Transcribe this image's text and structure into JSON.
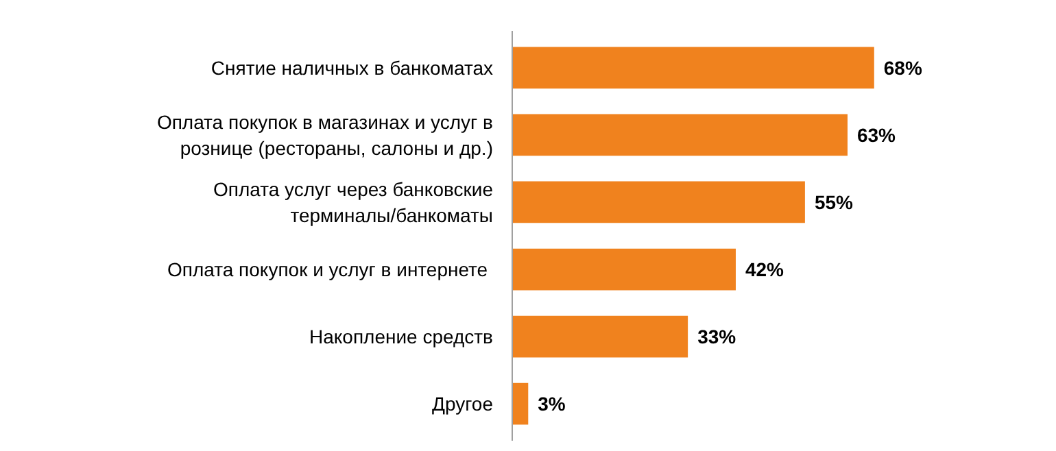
{
  "chart_data": {
    "type": "bar",
    "orientation": "horizontal",
    "data_labels": true,
    "categories": [
      "Снятие наличных в банкоматах",
      "Оплата покупок в магазинах и услуг в\nрознице (рестораны, салоны и др.)",
      "Оплата услуг через банковские\nтерминалы/банкоматы",
      "Оплата покупок и  услуг в интернете",
      "Накопление средств",
      "Другое"
    ],
    "values": [
      68,
      63,
      55,
      42,
      33,
      3
    ],
    "value_labels": [
      "68%",
      "63%",
      "55%",
      "42%",
      "33%",
      "3%"
    ],
    "color": "#f0821e"
  }
}
